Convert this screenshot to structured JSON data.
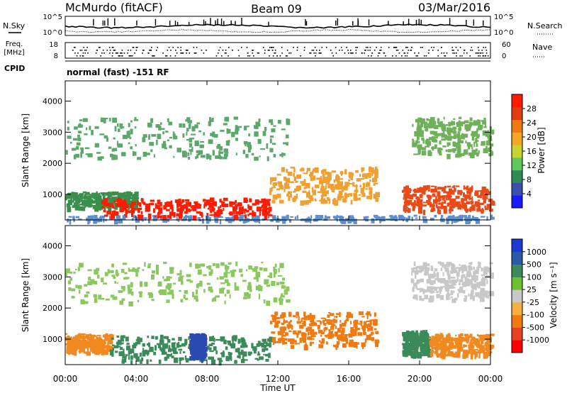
{
  "header": {
    "station": "McMurdo (fitACF)",
    "beam": "Beam 09",
    "date": "03/Mar/2016"
  },
  "top_panels": {
    "nsky_label": "N.Sky",
    "nsearch_label": "N.Search",
    "noise_ticks": [
      "10^5",
      "10^0"
    ],
    "freq_label_1": "Freq.",
    "freq_label_2": "[MHz]",
    "freq_ticks": [
      "18",
      "8"
    ],
    "nave_label": "Nave",
    "nave_ticks": [
      "60",
      "0"
    ],
    "cpid_label": "CPID",
    "cpid_text": "normal (fast) -151 RF"
  },
  "chart_data": [
    {
      "type": "heatmap",
      "title": "",
      "xlabel": "",
      "ylabel": "Slant Range [km]",
      "x_tick_labels": [
        "00:00",
        "04:00",
        "08:00",
        "12:00",
        "16:00",
        "20:00",
        "00:00"
      ],
      "x_hours": [
        0,
        4,
        8,
        12,
        16,
        20,
        24
      ],
      "xlim": [
        0,
        24
      ],
      "ylim": [
        180,
        4650
      ],
      "y_ticks": [
        1000,
        2000,
        3000,
        4000
      ],
      "colorbar": {
        "label": "Power [dB]",
        "ticks": [
          "4",
          "8",
          "12",
          "16",
          "20",
          "24",
          "28"
        ],
        "colors": [
          "#1a1aff",
          "#3a4fb0",
          "#2e8b57",
          "#5ec85a",
          "#c8d22a",
          "#f5a623",
          "#f07a10",
          "#e03c10",
          "#ff1a00"
        ]
      },
      "scatter_regions": [
        {
          "x": [
            0.0,
            24.0
          ],
          "y": [
            200,
            350
          ],
          "value": "low",
          "color": "#5b8fd0"
        },
        {
          "x": [
            0.0,
            4.0
          ],
          "y": [
            600,
            1100
          ],
          "value": "12-20 dB",
          "color": "#3a8f4a"
        },
        {
          "x": [
            2.0,
            11.5
          ],
          "y": [
            320,
            900
          ],
          "value": ">28 dB",
          "color": "#ff1a00"
        },
        {
          "x": [
            11.5,
            17.5
          ],
          "y": [
            800,
            1900
          ],
          "value": "16-24 dB",
          "color": "#f0a030"
        },
        {
          "x": [
            19.0,
            24.0
          ],
          "y": [
            500,
            1300
          ],
          "value": "16-28 dB",
          "color": "#e84a18"
        },
        {
          "x": [
            0.0,
            12.5
          ],
          "y": [
            2200,
            3500
          ],
          "value": "8-16 dB",
          "color": "#5aa86a"
        },
        {
          "x": [
            19.5,
            24.0
          ],
          "y": [
            2300,
            3500
          ],
          "value": "8-20 dB",
          "color": "#6fb05a"
        }
      ]
    },
    {
      "type": "heatmap",
      "title": "",
      "xlabel": "Time UT",
      "ylabel": "Slant Range [km]",
      "x_tick_labels": [
        "00:00",
        "04:00",
        "08:00",
        "12:00",
        "16:00",
        "20:00",
        "00:00"
      ],
      "x_hours": [
        0,
        4,
        8,
        12,
        16,
        20,
        24
      ],
      "xlim": [
        0,
        24
      ],
      "ylim": [
        180,
        4650
      ],
      "y_ticks": [
        1000,
        2000,
        3000,
        4000
      ],
      "colorbar": {
        "label": "Velocity [m s⁻¹]",
        "ticks": [
          "1000",
          "500",
          "100",
          "25",
          "-25",
          "-100",
          "-500",
          "-1000"
        ],
        "colors": [
          "#1a3ad0",
          "#2a5aa8",
          "#3a8a5a",
          "#6cc030",
          "#c8c8c8",
          "#f5b040",
          "#f07a10",
          "#e84020",
          "#ff0000"
        ]
      },
      "scatter_regions": [
        {
          "x": [
            0.0,
            2.5
          ],
          "y": [
            600,
            1200
          ],
          "value": "-100 to -500",
          "color": "#f08a20"
        },
        {
          "x": [
            2.5,
            11.5
          ],
          "y": [
            320,
            1150
          ],
          "value": "100 to 500",
          "color": "#3a8a5a"
        },
        {
          "x": [
            7.0,
            7.8
          ],
          "y": [
            400,
            1200
          ],
          "value": "500 to 1000",
          "color": "#2a4ab0"
        },
        {
          "x": [
            11.5,
            17.5
          ],
          "y": [
            800,
            1900
          ],
          "value": "-100 to -500",
          "color": "#f07a10"
        },
        {
          "x": [
            19.0,
            20.5
          ],
          "y": [
            500,
            1300
          ],
          "value": "100 to 500",
          "color": "#3a8a5a"
        },
        {
          "x": [
            20.5,
            24.0
          ],
          "y": [
            500,
            1200
          ],
          "value": "-100 to -500",
          "color": "#f08a20"
        },
        {
          "x": [
            0.0,
            12.5
          ],
          "y": [
            2200,
            3500
          ],
          "value": "-25 to 100",
          "color": "#8cc860"
        },
        {
          "x": [
            19.5,
            24.0
          ],
          "y": [
            2300,
            3500
          ],
          "value": "-25 to 25",
          "color": "#c8c8c8"
        }
      ]
    }
  ]
}
